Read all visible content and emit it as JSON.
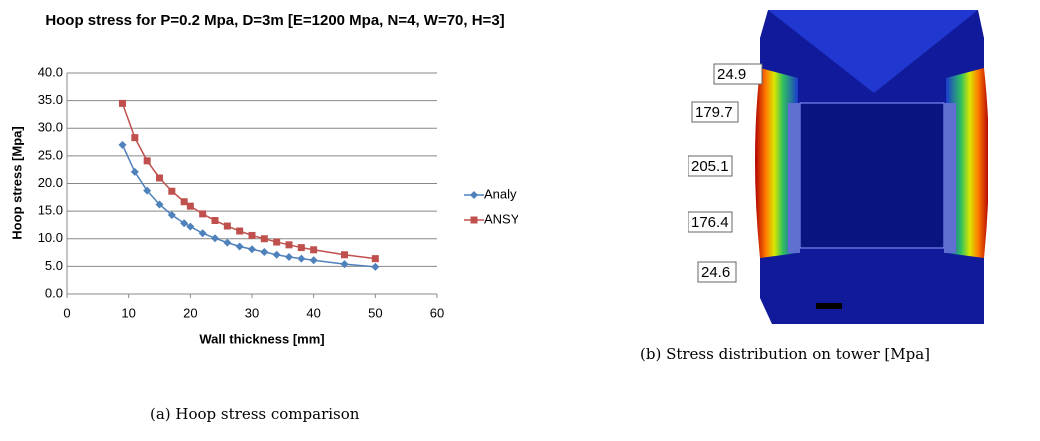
{
  "chart_data": {
    "type": "line",
    "title": "Hoop stress for P=0.2 Mpa,  D=3m [E=1200 Mpa, N=4, W=70, H=3]",
    "x_label": "Wall  thickness [mm]",
    "y_label": "Hoop stress [Mpa]",
    "x": [
      9,
      11,
      13,
      15,
      17,
      19,
      20,
      22,
      24,
      26,
      28,
      30,
      32,
      34,
      36,
      38,
      40,
      45,
      50
    ],
    "series": [
      {
        "name": "Analy",
        "color": "#4f81bd",
        "marker": "diamond",
        "values": [
          27.0,
          22.1,
          18.7,
          16.2,
          14.3,
          12.8,
          12.2,
          11.0,
          10.1,
          9.3,
          8.6,
          8.1,
          7.6,
          7.1,
          6.7,
          6.4,
          6.1,
          5.4,
          4.9
        ]
      },
      {
        "name": "ANSY",
        "color": "#c0504d",
        "marker": "square",
        "values": [
          34.5,
          28.3,
          24.1,
          21.0,
          18.6,
          16.7,
          15.9,
          14.5,
          13.3,
          12.3,
          11.4,
          10.6,
          10.0,
          9.4,
          8.9,
          8.4,
          8.0,
          7.1,
          6.4
        ]
      }
    ],
    "xlim": [
      0,
      60
    ],
    "xticks": [
      0,
      10,
      20,
      30,
      40,
      50,
      60
    ],
    "ylim": [
      0,
      40
    ],
    "yticks": [
      {
        "value": 0,
        "label": "0.0"
      },
      {
        "value": 5,
        "label": "5.0"
      },
      {
        "value": 10,
        "label": "10.0"
      },
      {
        "value": 15,
        "label": "15.0"
      },
      {
        "value": 20,
        "label": "20.0"
      },
      {
        "value": 25,
        "label": "25.0"
      },
      {
        "value": 30,
        "label": "30.0"
      },
      {
        "value": 35,
        "label": "35.0"
      },
      {
        "value": 40,
        "label": "40.0"
      }
    ],
    "grid": true,
    "legend": "right",
    "caption": "(a) Hoop stress comparison"
  },
  "figure_b": {
    "labels": [
      "24.9",
      "179.7",
      "205.1",
      "176.4",
      "24.6"
    ],
    "caption": "(b) Stress distribution on tower [Mpa]"
  }
}
